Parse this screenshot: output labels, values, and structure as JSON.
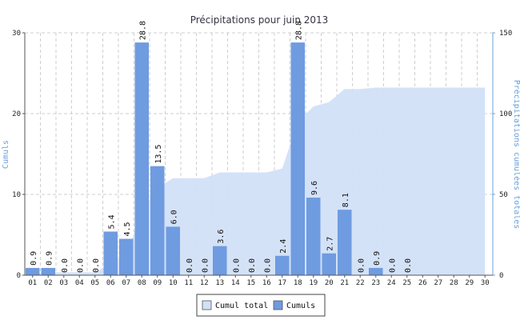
{
  "chart_data": {
    "type": "bar",
    "title": "Précipitations pour juin 2013",
    "xlabel": "",
    "ylabel": "Cumuls",
    "y2label": "Précipitations cumulées totales",
    "ylim": [
      0,
      30
    ],
    "y2lim": [
      0,
      150
    ],
    "yticks": [
      "0",
      "10",
      "20",
      "30"
    ],
    "y2ticks": [
      "0",
      "50",
      "100",
      "150"
    ],
    "categories": [
      "01",
      "02",
      "03",
      "04",
      "05",
      "06",
      "07",
      "08",
      "09",
      "10",
      "11",
      "12",
      "13",
      "14",
      "15",
      "16",
      "17",
      "18",
      "19",
      "20",
      "21",
      "22",
      "23",
      "24",
      "25",
      "26",
      "27",
      "28",
      "29",
      "30"
    ],
    "series": [
      {
        "name": "Cumuls",
        "type": "bar",
        "axis": "left",
        "color": "#6f9be0",
        "values": [
          0.9,
          0.9,
          0.0,
          0.0,
          0.0,
          5.4,
          4.5,
          28.8,
          13.5,
          6.0,
          0.0,
          0.0,
          3.6,
          0.0,
          0.0,
          0.0,
          2.4,
          28.8,
          9.6,
          2.7,
          8.1,
          0.0,
          0.9,
          0.0,
          0.0,
          null,
          null,
          null,
          null,
          null
        ],
        "labels": [
          "0.9",
          "0.9",
          "0.0",
          "0.0",
          "0.0",
          "5.4",
          "4.5",
          "28.8",
          "13.5",
          "6.0",
          "0.0",
          "0.0",
          "3.6",
          "0.0",
          "0.0",
          "0.0",
          "2.4",
          "28.8",
          "9.6",
          "2.7",
          "8.1",
          "0.0",
          "0.9",
          "0.0",
          "0.0",
          "",
          "",
          "",
          "",
          ""
        ]
      },
      {
        "name": "Cumul total",
        "type": "area",
        "axis": "right",
        "color": "#d2e0f8",
        "values": [
          0.9,
          1.8,
          1.8,
          1.8,
          1.8,
          7.2,
          11.7,
          40.5,
          54.0,
          60.0,
          60.0,
          60.0,
          63.6,
          63.6,
          63.6,
          63.6,
          66.0,
          94.8,
          104.4,
          107.1,
          115.2,
          115.2,
          116.1,
          116.1,
          116.1,
          116.1,
          116.1,
          116.1,
          116.1,
          116.1
        ]
      }
    ],
    "grid": true,
    "legend": {
      "position": "bottom-center",
      "entries": [
        "Cumul total",
        "Cumuls"
      ]
    }
  }
}
